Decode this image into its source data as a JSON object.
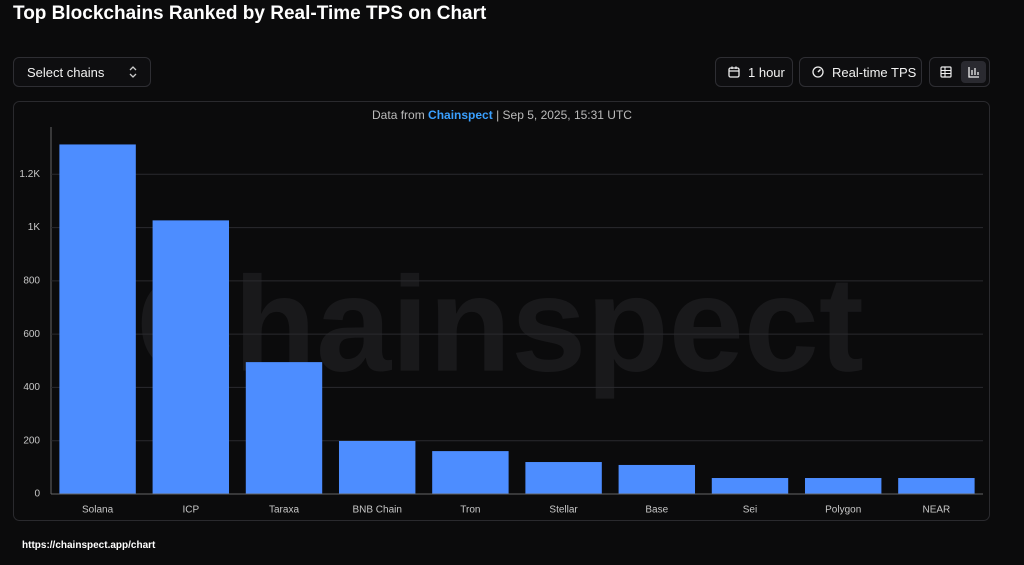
{
  "header": {
    "title": "Top Blockchains Ranked by Real-Time TPS on Chart"
  },
  "controls": {
    "select_label": "Select chains",
    "time_button": "1 hour",
    "metric_button": "Real-time TPS"
  },
  "chart_data": {
    "type": "bar",
    "source_prefix": "Data from",
    "source_name": "Chainspect",
    "separator": "|",
    "timestamp": "Sep 5, 2025, 15:31 UTC",
    "watermark": "Chainspect",
    "categories": [
      "Solana",
      "ICP",
      "Taraxa",
      "BNB Chain",
      "Tron",
      "Stellar",
      "Base",
      "Sei",
      "Polygon",
      "NEAR"
    ],
    "values": [
      1312,
      1027,
      495,
      199,
      161,
      120,
      109,
      60,
      60,
      60
    ],
    "color": "#4d8dff",
    "ylim": [
      0,
      1400
    ],
    "yticks": [
      0,
      200,
      400,
      600,
      800,
      {
        "value": 1000,
        "label": "1K"
      },
      {
        "value": 1200,
        "label": "1.2K"
      }
    ],
    "grid": true
  },
  "footer": {
    "url": "https://chainspect.app/chart"
  }
}
